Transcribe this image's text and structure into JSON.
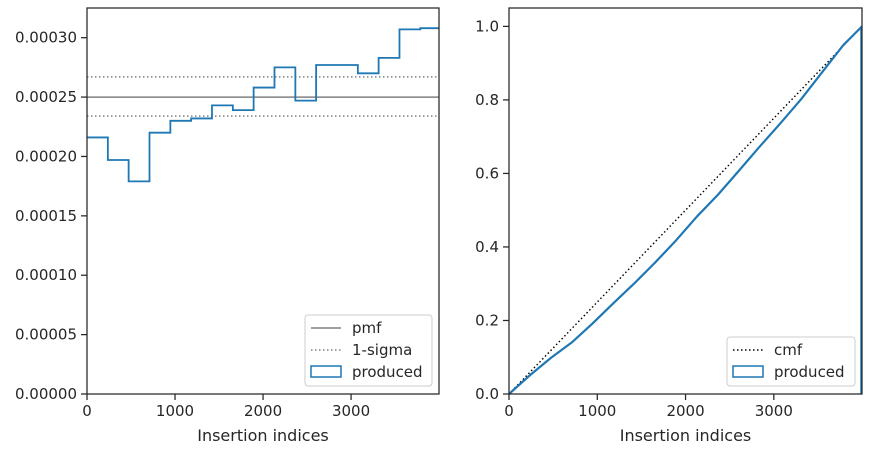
{
  "colors": {
    "produced": "#1f77b4",
    "pmf": "#808080",
    "sigma": "#808080",
    "cmf": "#000000",
    "axis": "#262626"
  },
  "chart_data": [
    {
      "type": "step",
      "xlabel": "Insertion indices",
      "ylabel": "",
      "xlim": [
        0,
        3999
      ],
      "ylim": [
        0,
        0.000325
      ],
      "xticks": [
        0,
        1000,
        2000,
        3000
      ],
      "xtick_labels": [
        "0",
        "1000",
        "2000",
        "3000"
      ],
      "yticks": [
        0,
        5e-05,
        0.0001,
        0.00015,
        0.0002,
        0.00025,
        0.0003
      ],
      "ytick_labels": [
        "0.00000",
        "0.00005",
        "0.00010",
        "0.00015",
        "0.00020",
        "0.00025",
        "0.00030"
      ],
      "histogram": {
        "name": "produced",
        "bin_edges": [
          0,
          237,
          473,
          710,
          947,
          1183,
          1420,
          1657,
          1893,
          2130,
          2367,
          2603,
          2840,
          3077,
          3313,
          3550,
          3787,
          3999
        ],
        "values": [
          0.000216,
          0.000197,
          0.000179,
          0.00022,
          0.00023,
          0.000232,
          0.000243,
          0.000239,
          0.000258,
          0.000275,
          0.000247,
          0.000277,
          0.000277,
          0.00027,
          0.000283,
          0.000307,
          0.000308
        ]
      },
      "pmf": {
        "name": "pmf",
        "value": 0.00025
      },
      "sigma": {
        "name": "1-sigma",
        "values": [
          0.000234,
          0.000267
        ]
      },
      "legend": {
        "position": "lower right",
        "entries": [
          "pmf",
          "1-sigma",
          "produced"
        ]
      }
    },
    {
      "type": "line",
      "xlabel": "Insertion indices",
      "ylabel": "",
      "xlim": [
        0,
        3999
      ],
      "ylim": [
        0,
        1.05
      ],
      "xticks": [
        0,
        1000,
        2000,
        3000
      ],
      "xtick_labels": [
        "0",
        "1000",
        "2000",
        "3000"
      ],
      "yticks": [
        0,
        0.2,
        0.4,
        0.6,
        0.8,
        1.0
      ],
      "ytick_labels": [
        "0.0",
        "0.2",
        "0.4",
        "0.6",
        "0.8",
        "1.0"
      ],
      "cmf": {
        "name": "cmf",
        "x": [
          0,
          3999
        ],
        "y": [
          0,
          1
        ]
      },
      "produced": {
        "name": "produced",
        "x": [
          0,
          237,
          473,
          710,
          947,
          1183,
          1420,
          1657,
          1893,
          2130,
          2367,
          2603,
          2840,
          3077,
          3313,
          3550,
          3787,
          3999
        ],
        "y": [
          0,
          0.051,
          0.098,
          0.14,
          0.192,
          0.247,
          0.301,
          0.358,
          0.418,
          0.483,
          0.542,
          0.607,
          0.673,
          0.737,
          0.803,
          0.876,
          0.949,
          1.0
        ]
      },
      "legend": {
        "position": "lower right",
        "entries": [
          "cmf",
          "produced"
        ]
      }
    }
  ]
}
